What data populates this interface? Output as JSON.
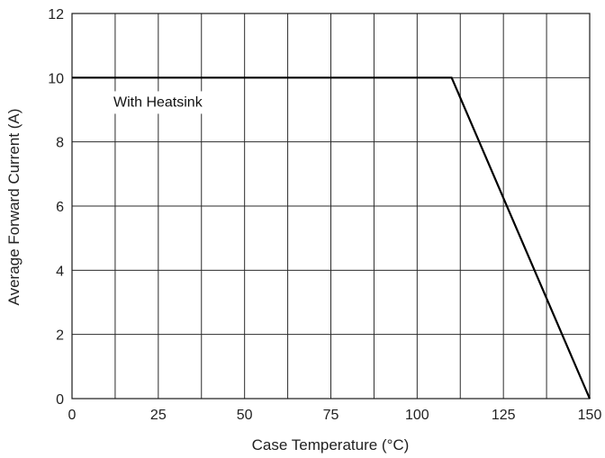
{
  "chart_data": {
    "type": "line",
    "title": "",
    "xlabel": "Case Temperature (°C)",
    "ylabel": "Average Forward Current (A)",
    "xlim": [
      0,
      150
    ],
    "ylim": [
      0,
      12
    ],
    "x_ticks": [
      0,
      25,
      50,
      75,
      100,
      125,
      150
    ],
    "y_ticks": [
      0,
      2,
      4,
      6,
      8,
      10,
      12
    ],
    "x_grid": [
      0,
      12.5,
      25,
      37.5,
      50,
      62.5,
      75,
      87.5,
      100,
      112.5,
      125,
      137.5,
      150
    ],
    "y_grid": [
      0,
      2,
      4,
      6,
      8,
      10,
      12
    ],
    "grid": true,
    "series": [
      {
        "x": [
          0,
          110,
          150
        ],
        "y": [
          10,
          10,
          0
        ],
        "color": "#000000"
      }
    ],
    "annotations": [
      {
        "text": "With Heatsink",
        "x": 12,
        "y": 9.1
      }
    ]
  }
}
